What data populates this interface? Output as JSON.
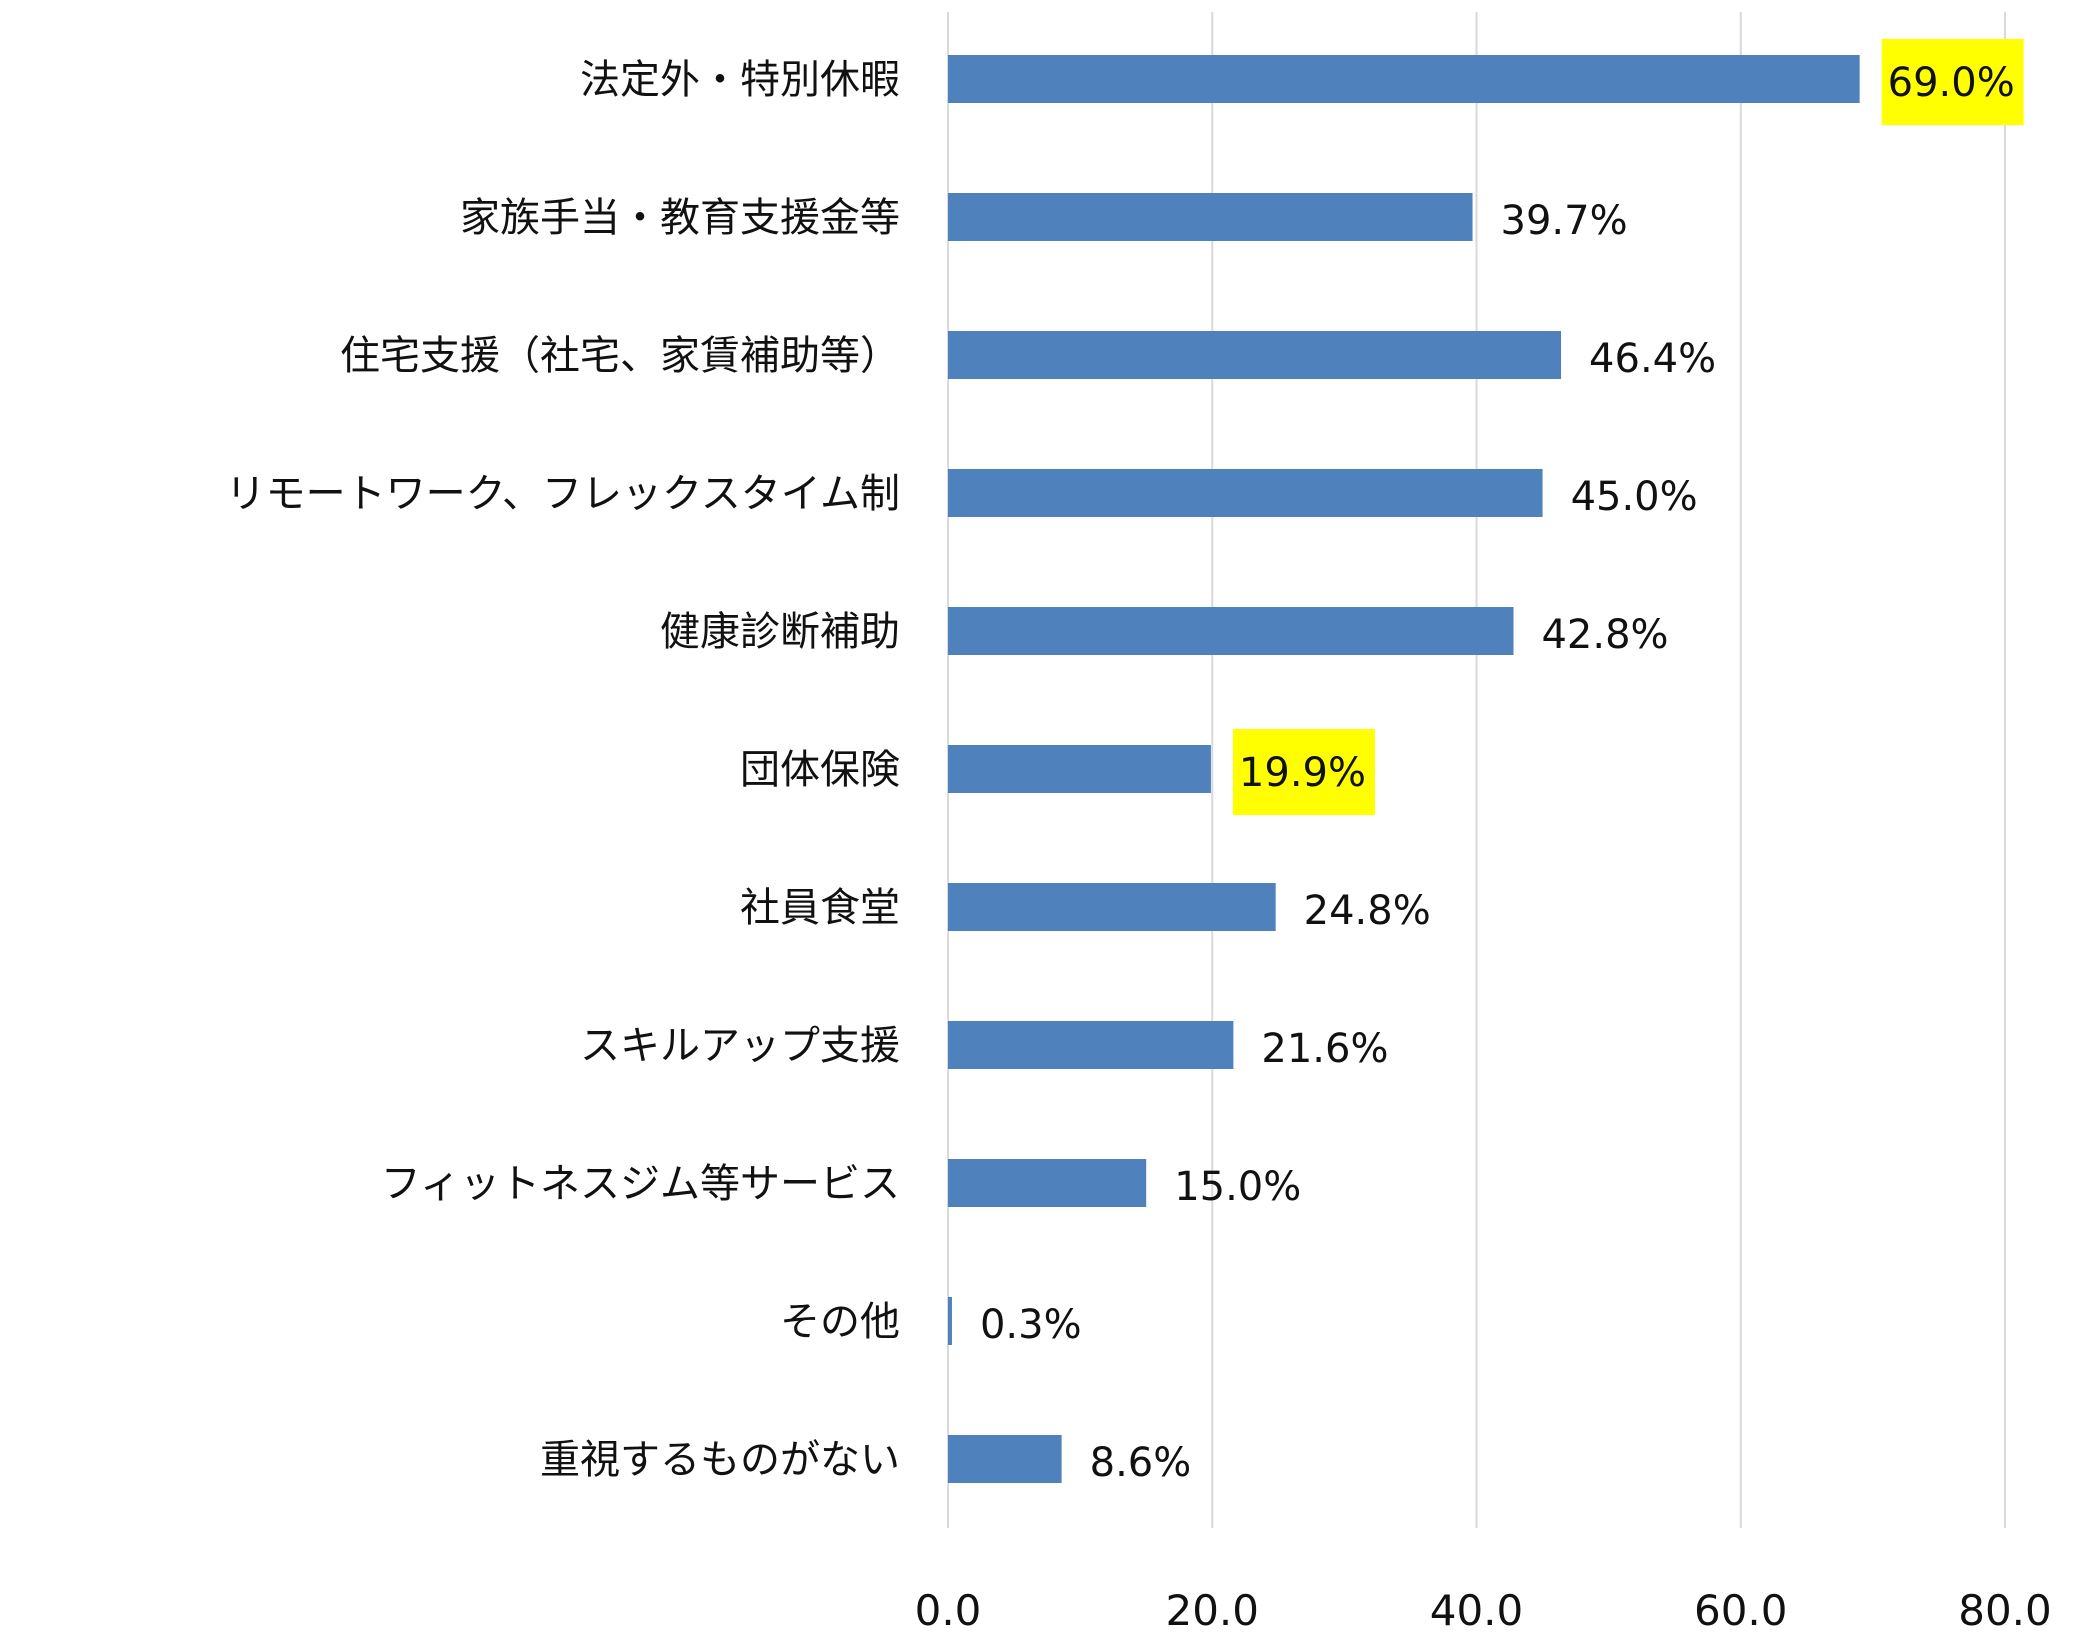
{
  "chart_data": {
    "type": "bar",
    "orientation": "horizontal",
    "categories": [
      "法定外・特別休暇",
      "家族手当・教育支援金等",
      "住宅支援（社宅、家賃補助等）",
      "リモートワーク、フレックスタイム制",
      "健康診断補助",
      "団体保険",
      "社員食堂",
      "スキルアップ支援",
      "フィットネスジム等サービス",
      "その他",
      "重視するものがない"
    ],
    "values": [
      69.0,
      39.7,
      46.4,
      45.0,
      42.8,
      19.9,
      24.8,
      21.6,
      15.0,
      0.3,
      8.6
    ],
    "value_labels": [
      "69.0%",
      "39.7%",
      "46.4%",
      "45.0%",
      "42.8%",
      "19.9%",
      "24.8%",
      "21.6%",
      "15.0%",
      "0.3%",
      "8.6%"
    ],
    "highlighted": [
      true,
      false,
      false,
      false,
      false,
      true,
      false,
      false,
      false,
      false,
      false
    ],
    "xlim": [
      0,
      80
    ],
    "xticks": [
      0,
      20,
      40,
      60,
      80
    ],
    "xtick_labels": [
      "0.0",
      "20.0",
      "40.0",
      "60.0",
      "80.0"
    ],
    "grid": "vertical",
    "bar_color": "#4f81bd",
    "highlight_color": "#ffff00",
    "gridline_color": "#d9d9d9"
  }
}
